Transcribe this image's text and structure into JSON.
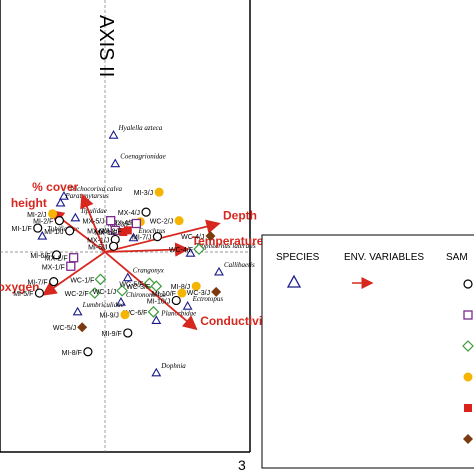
{
  "chart_data": {
    "type": "scatter",
    "subtype": "CCA ordination triplot",
    "title": "",
    "axis_titles": {
      "y": "AXIS II"
    },
    "x_tick_labels": [
      "3"
    ],
    "colors": {
      "species": "#1a1a8c",
      "env": "#d6281f",
      "circle": "#000000",
      "square": "#7a2c8f",
      "diamond": "#3c9a3c",
      "yellow": "#f4b400",
      "red": "#d9221c",
      "brown": "#7b3a10"
    },
    "species": [
      {
        "label": "Hyalella azteca",
        "x": 0.15,
        "y": 2.05
      },
      {
        "label": "Coenagrionidae",
        "x": 0.18,
        "y": 1.55
      },
      {
        "label": "Trichocorixa calva",
        "x": -0.72,
        "y": 0.98
      },
      {
        "label": "Paratanytarsus",
        "x": -0.78,
        "y": 0.86
      },
      {
        "label": "Tipulidae",
        "x": -0.52,
        "y": 0.6
      },
      {
        "label": "Tubificidae",
        "x": -1.1,
        "y": 0.28
      },
      {
        "label": "Enochrus",
        "x": 0.5,
        "y": 0.25
      },
      {
        "label": "Tropisternus lateralis",
        "x": 1.5,
        "y": -0.02
      },
      {
        "label": "Callibaetis",
        "x": 2.0,
        "y": -0.35
      },
      {
        "label": "Crangonyx",
        "x": 0.4,
        "y": -0.45
      },
      {
        "label": "Chironomidae",
        "x": 0.28,
        "y": -0.88
      },
      {
        "label": "Lumbriculidae",
        "x": -0.48,
        "y": -1.05
      },
      {
        "label": "Planorbidae",
        "x": 0.9,
        "y": -1.2
      },
      {
        "label": "Ectrotopus",
        "x": 1.45,
        "y": -0.95
      },
      {
        "label": "Dophnia",
        "x": 0.9,
        "y": -2.12
      }
    ],
    "env_variables": [
      {
        "label": "% cover",
        "x": -0.4,
        "y": 1.0
      },
      {
        "label": "height",
        "x": -0.95,
        "y": 0.72
      },
      {
        "label": "Depth",
        "x": 2.0,
        "y": 0.5
      },
      {
        "label": "Temperature",
        "x": 1.45,
        "y": 0.05
      },
      {
        "label": "lved oxygen",
        "x": -1.08,
        "y": -0.75
      },
      {
        "label": "Conductivity",
        "x": 1.6,
        "y": -1.35
      }
    ],
    "sites": [
      {
        "label": "MI-3/J",
        "x": 0.95,
        "y": 1.05,
        "marker": "yellow"
      },
      {
        "label": "MX-4/J",
        "x": 0.72,
        "y": 0.7,
        "marker": "circle"
      },
      {
        "label": "MX-4/F",
        "x": 0.62,
        "y": 0.53,
        "marker": "yellow"
      },
      {
        "label": "MX-3/F",
        "x": 0.55,
        "y": 0.5,
        "marker": "square"
      },
      {
        "label": "WC-2/J",
        "x": 1.3,
        "y": 0.55,
        "marker": "yellow"
      },
      {
        "label": "MI-7/J",
        "x": 0.92,
        "y": 0.27,
        "marker": "circle"
      },
      {
        "label": "MI-2/J",
        "x": -0.92,
        "y": 0.67,
        "marker": "yellow"
      },
      {
        "label": "MI-2/F",
        "x": -0.8,
        "y": 0.55,
        "marker": "circle"
      },
      {
        "label": "MI-1/F",
        "x": -1.18,
        "y": 0.42,
        "marker": "circle"
      },
      {
        "label": "MI-1/J",
        "x": -0.62,
        "y": 0.37,
        "marker": "circle"
      },
      {
        "label": "MX-2/J",
        "x": 0.18,
        "y": 0.38,
        "marker": "square"
      },
      {
        "label": "MX-1/J",
        "x": 0.18,
        "y": 0.22,
        "marker": "circle"
      },
      {
        "label": "MI-5/J",
        "x": 0.15,
        "y": 0.1,
        "marker": "circle"
      },
      {
        "label": "MX-5/J",
        "x": 0.1,
        "y": 0.55,
        "marker": "square"
      },
      {
        "label": "MX-1/F",
        "x": 0.32,
        "y": 0.35,
        "marker": "red"
      },
      {
        "label": "MX-2/F",
        "x": 0.4,
        "y": 0.38,
        "marker": "red"
      },
      {
        "label": "MI-6/F",
        "x": -0.85,
        "y": -0.05,
        "marker": "circle"
      },
      {
        "label": "MX-2/F",
        "x": -0.55,
        "y": -0.1,
        "marker": "square"
      },
      {
        "label": "WC-4/J",
        "x": 1.85,
        "y": 0.28,
        "marker": "brown"
      },
      {
        "label": "WC-4/F",
        "x": 1.65,
        "y": 0.05,
        "marker": "diamond"
      },
      {
        "label": "MX-1/F",
        "x": -0.6,
        "y": -0.25,
        "marker": "square"
      },
      {
        "label": "WC-1/F",
        "x": -0.08,
        "y": -0.48,
        "marker": "diamond"
      },
      {
        "label": "MI-7/F",
        "x": -0.9,
        "y": -0.52,
        "marker": "circle"
      },
      {
        "label": "MI-5/F",
        "x": -1.15,
        "y": -0.72,
        "marker": "circle"
      },
      {
        "label": "WC-2/F",
        "x": -0.18,
        "y": -0.72,
        "marker": "diamond"
      },
      {
        "label": "WC-1/J",
        "x": 0.3,
        "y": -0.68,
        "marker": "diamond"
      },
      {
        "label": "WC-5/F",
        "x": 0.78,
        "y": -0.55,
        "marker": "diamond"
      },
      {
        "label": "WC-3/F",
        "x": 0.9,
        "y": -0.6,
        "marker": "diamond"
      },
      {
        "label": "MI-8/J",
        "x": 1.6,
        "y": -0.6,
        "marker": "yellow"
      },
      {
        "label": "MI-10/F",
        "x": 1.35,
        "y": -0.72,
        "marker": "yellow"
      },
      {
        "label": "MI-10/J",
        "x": 1.25,
        "y": -0.85,
        "marker": "circle"
      },
      {
        "label": "WC-3/J",
        "x": 1.95,
        "y": -0.7,
        "marker": "brown"
      },
      {
        "label": "WC-6/F",
        "x": 0.85,
        "y": -1.05,
        "marker": "diamond"
      },
      {
        "label": "MI-9/J",
        "x": 0.35,
        "y": -1.1,
        "marker": "yellow"
      },
      {
        "label": "WC-5/J",
        "x": -0.4,
        "y": -1.32,
        "marker": "brown"
      },
      {
        "label": "MI-9/F",
        "x": 0.4,
        "y": -1.42,
        "marker": "circle"
      },
      {
        "label": "MI-8/F",
        "x": -0.3,
        "y": -1.75,
        "marker": "circle"
      }
    ],
    "legend": {
      "headers": [
        "SPECIES",
        "ENV. VARIABLES",
        "SAM"
      ],
      "species_symbol": "triangle",
      "env_symbol": "arrow",
      "sample_symbols": [
        "circle",
        "square",
        "diamond",
        "yellow",
        "red",
        "brown"
      ]
    }
  }
}
